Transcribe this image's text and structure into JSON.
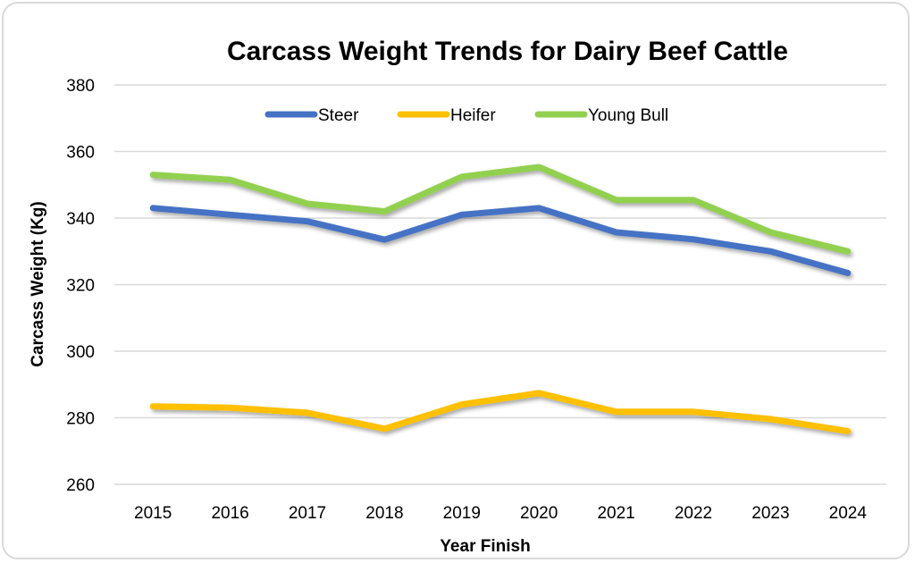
{
  "chart_data": {
    "type": "line",
    "title": "Carcass Weight Trends for Dairy Beef Cattle",
    "xlabel": "Year Finish",
    "ylabel": "Carcass Weight (Kg)",
    "categories": [
      "2015",
      "2016",
      "2017",
      "2018",
      "2019",
      "2020",
      "2021",
      "2022",
      "2023",
      "2024"
    ],
    "ylim": [
      260,
      380
    ],
    "yticks": [
      260,
      280,
      300,
      320,
      340,
      360,
      380
    ],
    "grid": true,
    "legend_position": "top-center",
    "series": [
      {
        "name": "Steer",
        "color": "#4472c4",
        "values": [
          343,
          341,
          339,
          333.5,
          341,
          343,
          335.7,
          333.6,
          330,
          323.5
        ]
      },
      {
        "name": "Heifer",
        "color": "#ffc000",
        "values": [
          283.4,
          283,
          281.5,
          276.7,
          284,
          287.4,
          281.8,
          281.8,
          279.6,
          276
        ]
      },
      {
        "name": "Young Bull",
        "color": "#92d050",
        "values": [
          353,
          351.5,
          344.3,
          342,
          352.4,
          355.3,
          345.4,
          345.4,
          335.7,
          330
        ]
      }
    ]
  }
}
